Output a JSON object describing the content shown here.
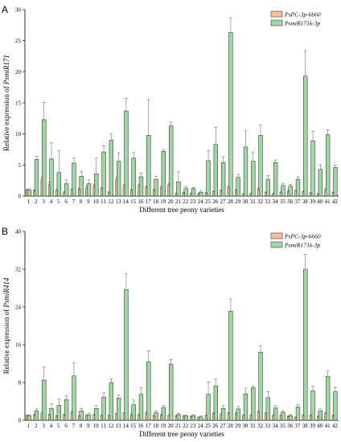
{
  "colors": {
    "series1": "#f6c19a",
    "series2": "#9fd7a3",
    "stroke": "#222222"
  },
  "chart_data": [
    {
      "type": "bar",
      "panel_label": "A",
      "title": "",
      "xlabel": "Different tree peony varieties",
      "ylabel_prefix": "Relative expression of ",
      "ylabel_gene": "PsmiR171",
      "ylim": [
        0,
        30
      ],
      "yticks": [
        0,
        5,
        10,
        15,
        20,
        25,
        30
      ],
      "legend_position": "top-right",
      "categories": [
        "1",
        "2",
        "3",
        "4",
        "5",
        "6",
        "7",
        "8",
        "9",
        "10",
        "11",
        "12",
        "13",
        "14",
        "15",
        "16",
        "17",
        "18",
        "19",
        "20",
        "21",
        "22",
        "23",
        "24",
        "25",
        "26",
        "27",
        "28",
        "29",
        "30",
        "31",
        "32",
        "33",
        "34",
        "35",
        "36",
        "37",
        "38",
        "39",
        "40",
        "41",
        "42"
      ],
      "series": [
        {
          "name": "PsPC-3p-6660",
          "values": [
            1.0,
            0.9,
            2.6,
            1.8,
            0.9,
            0.6,
            1.0,
            1.1,
            1.3,
            1.6,
            1.2,
            0.6,
            2.6,
            1.6,
            0.9,
            1.6,
            1.4,
            0.9,
            1.4,
            1.8,
            0.4,
            0.5,
            0.4,
            0.3,
            0.5,
            0.7,
            0.8,
            1.4,
            0.9,
            0.3,
            0.4,
            1.1,
            0.6,
            0.4,
            0.6,
            0.7,
            0.8,
            0.7,
            0.5,
            0.3,
            1.0,
            0.6
          ],
          "errors": [
            0.1,
            0.1,
            0.5,
            0.5,
            0.2,
            0.1,
            0.2,
            0.2,
            0.3,
            0.3,
            0.2,
            0.1,
            0.4,
            0.3,
            0.2,
            0.3,
            0.2,
            0.2,
            0.2,
            0.3,
            0.1,
            0.1,
            0.1,
            0.1,
            0.1,
            0.1,
            0.2,
            0.2,
            0.2,
            0.1,
            0.1,
            0.2,
            0.1,
            0.1,
            0.1,
            0.1,
            0.2,
            0.1,
            0.1,
            0.1,
            0.2,
            0.1
          ]
        },
        {
          "name": "PsmiR171k-3p",
          "values": [
            1.0,
            5.9,
            12.3,
            6.0,
            3.8,
            2.0,
            5.3,
            3.2,
            2.0,
            3.6,
            7.1,
            9.0,
            5.6,
            13.7,
            6.1,
            3.1,
            9.8,
            2.7,
            7.2,
            11.3,
            2.3,
            1.2,
            1.2,
            0.6,
            5.7,
            8.3,
            5.4,
            26.3,
            3.0,
            7.9,
            5.6,
            9.8,
            2.7,
            5.4,
            1.7,
            1.6,
            2.7,
            19.3,
            8.9,
            4.3,
            9.9,
            4.6
          ],
          "errors": [
            0.2,
            0.5,
            2.8,
            2.6,
            3.5,
            0.6,
            0.8,
            0.8,
            0.6,
            2.5,
            1.0,
            1.0,
            1.3,
            2.0,
            0.9,
            0.6,
            5.7,
            0.5,
            0.3,
            0.6,
            1.6,
            0.3,
            0.2,
            0.2,
            1.6,
            2.8,
            0.9,
            2.4,
            0.5,
            2.6,
            1.5,
            1.6,
            0.6,
            0.4,
            0.3,
            0.3,
            0.4,
            4.1,
            1.5,
            0.7,
            0.8,
            0.4
          ]
        }
      ]
    },
    {
      "type": "bar",
      "panel_label": "B",
      "title": "",
      "xlabel": "Different tree peony varieties",
      "ylabel_prefix": "Relative expression of ",
      "ylabel_gene": "PsmiR414",
      "ylim": [
        0,
        40
      ],
      "yticks": [
        0,
        8,
        16,
        24,
        32,
        40
      ],
      "legend_position": "top-right",
      "categories": [
        "1",
        "2",
        "3",
        "4",
        "5",
        "6",
        "7",
        "8",
        "9",
        "10",
        "11",
        "12",
        "13",
        "14",
        "15",
        "16",
        "17",
        "18",
        "19",
        "20",
        "21",
        "22",
        "23",
        "24",
        "25",
        "26",
        "27",
        "28",
        "29",
        "30",
        "31",
        "32",
        "33",
        "34",
        "35",
        "36",
        "37",
        "38",
        "39",
        "40",
        "41",
        "42"
      ],
      "series": [
        {
          "name": "PsPC-3p-6660",
          "values": [
            1.0,
            1.1,
            1.4,
            1.1,
            0.9,
            1.1,
            1.6,
            0.9,
            1.0,
            1.1,
            1.0,
            1.0,
            1.3,
            1.4,
            1.1,
            1.1,
            1.5,
            0.9,
            1.1,
            1.0,
            0.9,
            0.9,
            0.8,
            0.6,
            1.0,
            1.4,
            1.2,
            1.4,
            1.4,
            1.0,
            1.0,
            1.7,
            1.4,
            1.0,
            1.0,
            0.8,
            0.6,
            1.0,
            1.0,
            0.8,
            1.4,
            1.0
          ],
          "errors": [
            0.1,
            0.2,
            0.3,
            0.2,
            0.1,
            0.2,
            0.3,
            0.1,
            0.2,
            0.2,
            0.1,
            0.1,
            0.2,
            0.2,
            0.2,
            0.2,
            0.3,
            0.1,
            0.2,
            0.2,
            0.1,
            0.1,
            0.1,
            0.1,
            0.1,
            0.2,
            0.2,
            0.2,
            0.2,
            0.1,
            0.1,
            0.3,
            0.2,
            0.1,
            0.1,
            0.1,
            0.1,
            0.2,
            0.2,
            0.1,
            0.2,
            0.1
          ]
        },
        {
          "name": "PsmiR171k-3p",
          "values": [
            1.0,
            2.0,
            8.5,
            2.5,
            3.2,
            4.4,
            9.4,
            2.0,
            1.1,
            2.5,
            4.9,
            8.0,
            4.7,
            27.7,
            3.3,
            5.5,
            12.4,
            1.6,
            2.7,
            11.9,
            1.2,
            0.9,
            1.0,
            0.7,
            5.5,
            7.3,
            2.5,
            23.1,
            2.4,
            5.6,
            6.9,
            14.4,
            4.8,
            2.6,
            1.7,
            1.0,
            2.8,
            32.0,
            6.2,
            2.0,
            9.3,
            6.1
          ],
          "errors": [
            0.2,
            0.4,
            2.8,
            1.0,
            1.3,
            0.8,
            2.8,
            0.5,
            0.3,
            0.6,
            0.9,
            0.8,
            0.6,
            3.3,
            1.0,
            1.4,
            2.3,
            0.4,
            0.5,
            1.0,
            0.3,
            0.2,
            0.2,
            0.2,
            2.6,
            1.4,
            0.6,
            2.6,
            0.5,
            1.2,
            0.4,
            1.3,
            1.3,
            0.5,
            0.3,
            0.2,
            0.5,
            3.1,
            1.0,
            0.4,
            1.1,
            0.9
          ]
        }
      ]
    }
  ]
}
